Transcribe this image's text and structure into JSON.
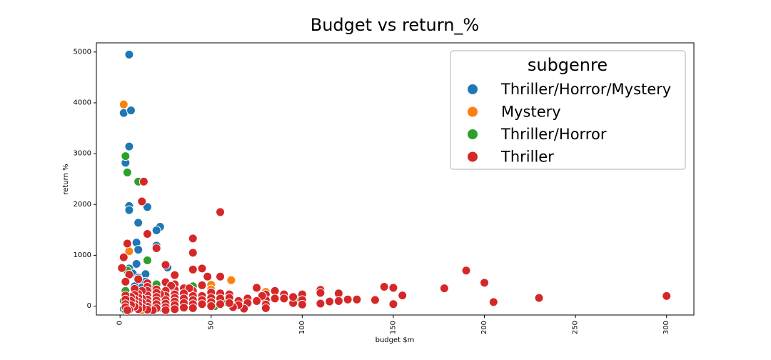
{
  "chart_data": {
    "type": "scatter",
    "title": "Budget vs return_%",
    "xlabel": "budget $m",
    "ylabel": "return %",
    "xlim": [
      -13,
      315
    ],
    "ylim": [
      -175,
      5180
    ],
    "xticks": [
      0,
      50,
      100,
      150,
      200,
      250,
      300
    ],
    "yticks": [
      0,
      1000,
      2000,
      3000,
      4000,
      5000
    ],
    "xtick_rotation": 90,
    "legend": {
      "title": "subgenre",
      "placement": "top-right"
    },
    "series": [
      {
        "name": "Thriller/Horror/Mystery",
        "color": "#1f77b4",
        "points": [
          [
            5,
            4950
          ],
          [
            2,
            3800
          ],
          [
            6,
            3850
          ],
          [
            5,
            3140
          ],
          [
            3,
            2820
          ],
          [
            5,
            1970
          ],
          [
            5,
            1890
          ],
          [
            15,
            1950
          ],
          [
            22,
            1560
          ],
          [
            20,
            1490
          ],
          [
            10,
            1640
          ],
          [
            9,
            1250
          ],
          [
            10,
            1110
          ],
          [
            20,
            1190
          ],
          [
            9,
            830
          ],
          [
            26,
            760
          ],
          [
            5,
            740
          ],
          [
            7,
            640
          ],
          [
            14,
            630
          ],
          [
            10,
            560
          ],
          [
            3,
            480
          ],
          [
            14,
            480
          ],
          [
            20,
            440
          ],
          [
            8,
            390
          ],
          [
            12,
            370
          ],
          [
            18,
            340
          ],
          [
            30,
            310
          ],
          [
            40,
            290
          ],
          [
            3,
            250
          ],
          [
            7,
            220
          ],
          [
            12,
            200
          ],
          [
            25,
            180
          ],
          [
            35,
            150
          ],
          [
            4,
            120
          ],
          [
            10,
            100
          ],
          [
            18,
            80
          ],
          [
            28,
            60
          ],
          [
            6,
            40
          ],
          [
            15,
            20
          ],
          [
            40,
            10
          ],
          [
            3,
            0
          ],
          [
            9,
            -20
          ],
          [
            22,
            -30
          ],
          [
            50,
            20
          ],
          [
            2,
            -60
          ]
        ]
      },
      {
        "name": "Mystery",
        "color": "#ff7f0e",
        "points": [
          [
            2,
            3970
          ],
          [
            5,
            1080
          ],
          [
            50,
            420
          ],
          [
            61,
            510
          ],
          [
            80,
            280
          ],
          [
            50,
            330
          ],
          [
            3,
            150
          ],
          [
            8,
            100
          ],
          [
            15,
            80
          ],
          [
            25,
            50
          ],
          [
            10,
            -30
          ],
          [
            4,
            -60
          ],
          [
            40,
            60
          ],
          [
            20,
            0
          ],
          [
            12,
            -80
          ]
        ]
      },
      {
        "name": "Thriller/Horror",
        "color": "#2ca02c",
        "points": [
          [
            3,
            2950
          ],
          [
            4,
            2630
          ],
          [
            10,
            2450
          ],
          [
            15,
            900
          ],
          [
            4,
            700
          ],
          [
            20,
            430
          ],
          [
            40,
            390
          ],
          [
            3,
            300
          ],
          [
            8,
            250
          ],
          [
            12,
            180
          ],
          [
            2,
            100
          ],
          [
            6,
            60
          ],
          [
            18,
            40
          ],
          [
            58,
            80
          ],
          [
            98,
            150
          ],
          [
            30,
            20
          ],
          [
            3,
            -80
          ],
          [
            10,
            -50
          ],
          [
            52,
            0
          ],
          [
            5,
            20
          ]
        ]
      },
      {
        "name": "Thriller",
        "color": "#d62728",
        "points": [
          [
            13,
            2450
          ],
          [
            12,
            2060
          ],
          [
            55,
            1850
          ],
          [
            15,
            1420
          ],
          [
            40,
            1330
          ],
          [
            4,
            1230
          ],
          [
            20,
            1140
          ],
          [
            40,
            1050
          ],
          [
            2,
            960
          ],
          [
            25,
            810
          ],
          [
            45,
            740
          ],
          [
            1,
            750
          ],
          [
            40,
            720
          ],
          [
            5,
            620
          ],
          [
            30,
            610
          ],
          [
            48,
            580
          ],
          [
            55,
            580
          ],
          [
            10,
            530
          ],
          [
            3,
            480
          ],
          [
            25,
            470
          ],
          [
            15,
            450
          ],
          [
            30,
            430
          ],
          [
            45,
            410
          ],
          [
            75,
            360
          ],
          [
            35,
            350
          ],
          [
            145,
            380
          ],
          [
            150,
            360
          ],
          [
            178,
            350
          ],
          [
            190,
            700
          ],
          [
            200,
            460
          ],
          [
            205,
            80
          ],
          [
            230,
            160
          ],
          [
            300,
            200
          ],
          [
            155,
            210
          ],
          [
            150,
            40
          ],
          [
            120,
            250
          ],
          [
            110,
            320
          ],
          [
            110,
            260
          ],
          [
            100,
            230
          ],
          [
            100,
            120
          ],
          [
            100,
            30
          ],
          [
            95,
            60
          ],
          [
            95,
            180
          ],
          [
            90,
            230
          ],
          [
            85,
            300
          ],
          [
            85,
            150
          ],
          [
            80,
            230
          ],
          [
            80,
            120
          ],
          [
            80,
            30
          ],
          [
            80,
            -40
          ],
          [
            78,
            200
          ],
          [
            75,
            100
          ],
          [
            70,
            150
          ],
          [
            70,
            60
          ],
          [
            68,
            -50
          ],
          [
            65,
            100
          ],
          [
            65,
            20
          ],
          [
            62,
            -20
          ],
          [
            60,
            230
          ],
          [
            60,
            160
          ],
          [
            60,
            60
          ],
          [
            55,
            250
          ],
          [
            55,
            150
          ],
          [
            55,
            40
          ],
          [
            50,
            270
          ],
          [
            50,
            160
          ],
          [
            50,
            80
          ],
          [
            50,
            0
          ],
          [
            45,
            200
          ],
          [
            45,
            120
          ],
          [
            45,
            40
          ],
          [
            40,
            300
          ],
          [
            40,
            200
          ],
          [
            40,
            120
          ],
          [
            40,
            40
          ],
          [
            40,
            -40
          ],
          [
            38,
            350
          ],
          [
            35,
            250
          ],
          [
            35,
            150
          ],
          [
            35,
            60
          ],
          [
            35,
            -30
          ],
          [
            30,
            320
          ],
          [
            30,
            230
          ],
          [
            30,
            160
          ],
          [
            30,
            90
          ],
          [
            30,
            20
          ],
          [
            30,
            -60
          ],
          [
            28,
            400
          ],
          [
            25,
            300
          ],
          [
            25,
            200
          ],
          [
            25,
            120
          ],
          [
            25,
            50
          ],
          [
            25,
            -20
          ],
          [
            25,
            -80
          ],
          [
            22,
            240
          ],
          [
            20,
            330
          ],
          [
            20,
            260
          ],
          [
            20,
            180
          ],
          [
            20,
            110
          ],
          [
            20,
            40
          ],
          [
            20,
            -40
          ],
          [
            18,
            -80
          ],
          [
            15,
            380
          ],
          [
            15,
            300
          ],
          [
            15,
            210
          ],
          [
            15,
            130
          ],
          [
            15,
            60
          ],
          [
            15,
            -10
          ],
          [
            15,
            -70
          ],
          [
            12,
            300
          ],
          [
            12,
            150
          ],
          [
            12,
            60
          ],
          [
            12,
            -30
          ],
          [
            10,
            240
          ],
          [
            10,
            170
          ],
          [
            10,
            90
          ],
          [
            10,
            20
          ],
          [
            10,
            -60
          ],
          [
            8,
            340
          ],
          [
            8,
            220
          ],
          [
            8,
            130
          ],
          [
            8,
            50
          ],
          [
            8,
            -10
          ],
          [
            6,
            180
          ],
          [
            6,
            100
          ],
          [
            6,
            20
          ],
          [
            5,
            -70
          ],
          [
            3,
            210
          ],
          [
            3,
            130
          ],
          [
            3,
            40
          ],
          [
            3,
            -20
          ],
          [
            4,
            -80
          ],
          [
            110,
            50
          ],
          [
            120,
            100
          ],
          [
            125,
            130
          ],
          [
            130,
            130
          ],
          [
            115,
            90
          ],
          [
            140,
            120
          ],
          [
            90,
            150
          ]
        ]
      }
    ]
  }
}
